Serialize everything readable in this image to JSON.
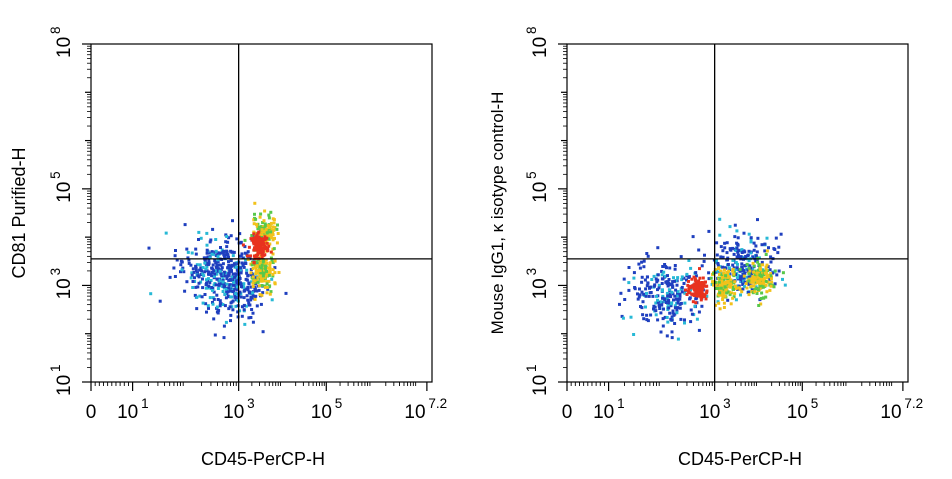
{
  "chart_data": [
    {
      "type": "scatter",
      "title": "",
      "xlabel": "CD45-PerCP-H",
      "ylabel": "CD81 Purified-H",
      "x_scale": "log",
      "y_scale": "log",
      "x_ticks": [
        {
          "base": "0",
          "exp": ""
        },
        {
          "base": "10",
          "exp": "1"
        },
        {
          "base": "10",
          "exp": "3"
        },
        {
          "base": "10",
          "exp": "5"
        },
        {
          "base": "10",
          "exp": "7.2"
        }
      ],
      "y_ticks": [
        {
          "base": "10",
          "exp": "1"
        },
        {
          "base": "10",
          "exp": "3"
        },
        {
          "base": "10",
          "exp": "5"
        },
        {
          "base": "10",
          "exp": "8"
        }
      ],
      "quadrant_gate": {
        "x_log10": 3.0,
        "y_log10": 3.55
      },
      "population_density": [
        {
          "x_log10": 3.45,
          "y_log10": 3.85,
          "level": "high"
        },
        {
          "x_log10": 3.5,
          "y_log10": 3.35,
          "level": "mid"
        },
        {
          "x_log10": 3.55,
          "y_log10": 4.1,
          "level": "mid"
        },
        {
          "x_log10": 2.5,
          "y_log10": 3.4,
          "level": "low"
        },
        {
          "x_log10": 2.9,
          "y_log10": 3.0,
          "level": "low"
        }
      ]
    },
    {
      "type": "scatter",
      "title": "",
      "xlabel": "CD45-PerCP-H",
      "ylabel": "Mouse IgG1, κ isotype control-H",
      "x_scale": "log",
      "y_scale": "log",
      "x_ticks": [
        {
          "base": "0",
          "exp": ""
        },
        {
          "base": "10",
          "exp": "1"
        },
        {
          "base": "10",
          "exp": "3"
        },
        {
          "base": "10",
          "exp": "5"
        },
        {
          "base": "10",
          "exp": "7.2"
        }
      ],
      "y_ticks": [
        {
          "base": "10",
          "exp": "1"
        },
        {
          "base": "10",
          "exp": "3"
        },
        {
          "base": "10",
          "exp": "5"
        },
        {
          "base": "10",
          "exp": "8"
        }
      ],
      "quadrant_gate": {
        "x_log10": 3.0,
        "y_log10": 3.55
      },
      "population_density": [
        {
          "x_log10": 2.65,
          "y_log10": 2.95,
          "level": "high"
        },
        {
          "x_log10": 3.2,
          "y_log10": 3.05,
          "level": "mid"
        },
        {
          "x_log10": 4.0,
          "y_log10": 3.15,
          "level": "mid"
        },
        {
          "x_log10": 2.1,
          "y_log10": 2.85,
          "level": "low"
        },
        {
          "x_log10": 3.6,
          "y_log10": 3.4,
          "level": "low"
        }
      ]
    }
  ]
}
